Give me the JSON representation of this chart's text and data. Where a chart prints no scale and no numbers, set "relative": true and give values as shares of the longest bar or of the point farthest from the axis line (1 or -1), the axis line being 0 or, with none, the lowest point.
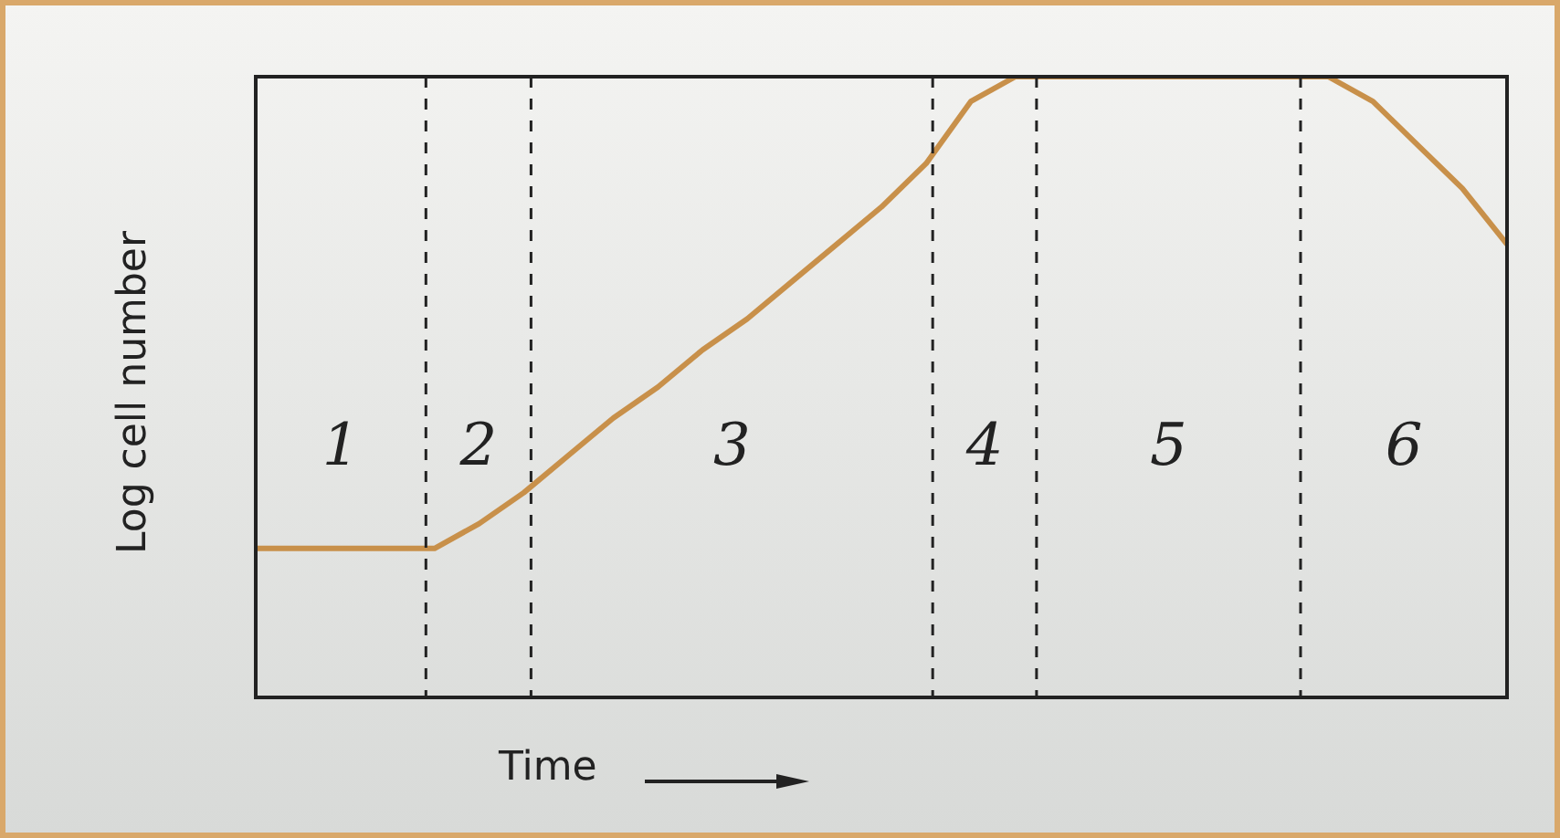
{
  "chart_data": {
    "type": "line",
    "relative": true,
    "xlabel": "Time",
    "ylabel": "Log cell number",
    "categories": [
      null,
      null,
      null,
      null,
      null,
      null,
      null,
      null,
      null,
      null,
      null,
      null,
      null,
      null,
      null,
      null,
      null,
      null,
      null,
      null,
      null,
      null,
      null,
      null,
      null,
      null,
      null,
      null,
      null
    ],
    "grid": false,
    "legend": false,
    "marker": "none",
    "series": [
      {
        "color": "#c8904a",
        "values": [
          0.24,
          0.24,
          0.24,
          0.24,
          0.24,
          0.28,
          0.33,
          0.39,
          0.45,
          0.5,
          0.56,
          0.61,
          0.67,
          0.73,
          0.79,
          0.86,
          0.96,
          1,
          1,
          1,
          1,
          1,
          1,
          1,
          1,
          0.96,
          0.89,
          0.82,
          0.73
        ]
      }
    ],
    "annotations": [
      "1",
      "2",
      "3",
      "4",
      "5",
      "6"
    ]
  }
}
